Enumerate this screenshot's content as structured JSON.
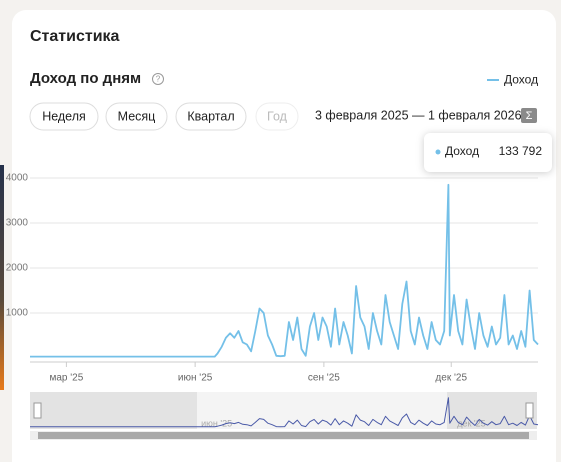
{
  "header": {
    "title": "Статистика"
  },
  "controls": {
    "periods": [
      "Неделя",
      "Месяц",
      "Квартал",
      "Год"
    ],
    "date_range": "3 февраля 2025 — 1 февраля 2026",
    "sum_button": "Σ"
  },
  "chart_data": {
    "type": "line",
    "title": "Доход по дням",
    "help": "?",
    "tooltip": {
      "label": "Доход",
      "value": "133 792"
    },
    "x": [
      0,
      20,
      40,
      60,
      80,
      100,
      120,
      132,
      134,
      137,
      140,
      143,
      146,
      149,
      152,
      155,
      158,
      161,
      164,
      167,
      170,
      173,
      176,
      179,
      182,
      185,
      188,
      191,
      194,
      197,
      200,
      203,
      206,
      209,
      212,
      215,
      218,
      221,
      224,
      227,
      230,
      233,
      236,
      239,
      242,
      245,
      248,
      251,
      254,
      257,
      260,
      263,
      266,
      269,
      272,
      275,
      278,
      281,
      284,
      287,
      290,
      293,
      296,
      299,
      300,
      303,
      306,
      309,
      312,
      315,
      318,
      321,
      324,
      327,
      330,
      333,
      336,
      339,
      342,
      345,
      348,
      351,
      354,
      357,
      360,
      363
    ],
    "series": [
      {
        "name": "Доход",
        "color": "#74c0e8",
        "values": [
          30,
          30,
          30,
          30,
          30,
          30,
          30,
          30,
          100,
          250,
          450,
          550,
          450,
          600,
          350,
          300,
          150,
          600,
          1100,
          1000,
          500,
          300,
          50,
          40,
          50,
          800,
          400,
          900,
          200,
          50,
          700,
          1000,
          400,
          900,
          700,
          250,
          1100,
          300,
          800,
          500,
          100,
          1600,
          900,
          700,
          200,
          1000,
          600,
          300,
          1400,
          800,
          500,
          200,
          1200,
          1700,
          600,
          300,
          900,
          500,
          200,
          800,
          400,
          300,
          600,
          3850,
          500,
          1400,
          600,
          300,
          1300,
          700,
          200,
          1000,
          500,
          250,
          700,
          300,
          450,
          1400,
          300,
          500,
          200,
          600,
          250,
          1500,
          400,
          300
        ]
      }
    ],
    "xlim": [
      0,
      363
    ],
    "xticks": [
      {
        "value": 26,
        "label": "мар '25"
      },
      {
        "value": 118,
        "label": "июн '25"
      },
      {
        "value": 210,
        "label": "сен '25"
      },
      {
        "value": 301,
        "label": "дек '25"
      }
    ],
    "ylim": [
      0,
      4200
    ],
    "yticks": [
      1000,
      2000,
      3000,
      4000
    ],
    "grid": true
  }
}
